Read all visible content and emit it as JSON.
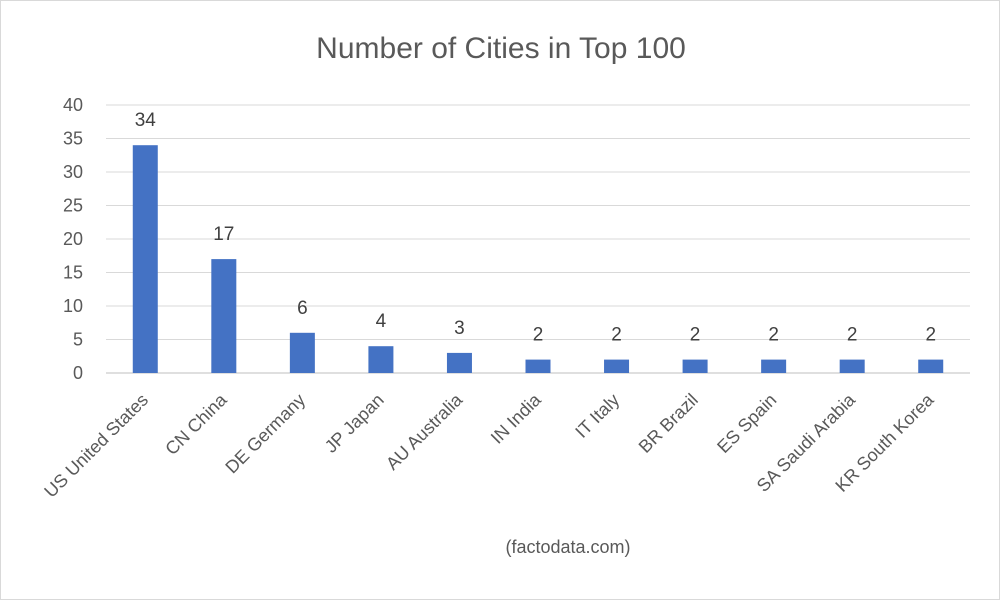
{
  "chart_data": {
    "type": "bar",
    "title": "Number of Cities in Top 100",
    "categories": [
      "US United States",
      "CN China",
      "DE Germany",
      "JP Japan",
      "AU Australia",
      "IN India",
      "IT Italy",
      "BR Brazil",
      "ES Spain",
      "SA Saudi Arabia",
      "KR South Korea"
    ],
    "values": [
      34,
      17,
      6,
      4,
      3,
      2,
      2,
      2,
      2,
      2,
      2
    ],
    "y_ticks": [
      "0",
      "5",
      "10",
      "15",
      "20",
      "25",
      "30",
      "35",
      "40"
    ],
    "ylim": [
      0,
      40
    ],
    "grid": true,
    "bar_color": "#4472c4",
    "source": "(factodata.com)"
  }
}
